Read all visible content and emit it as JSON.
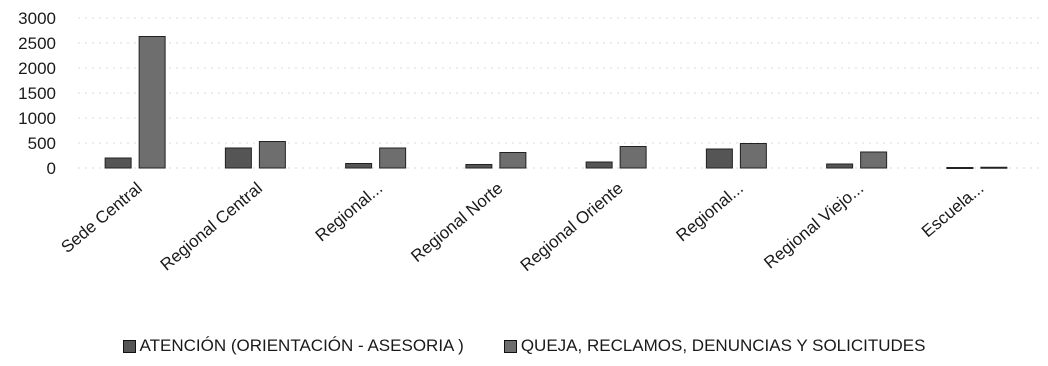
{
  "chart_data": {
    "type": "bar",
    "categories": [
      "Sede Central",
      "Regional Central",
      "Regional...",
      "Regional Norte",
      "Regional Oriente",
      "Regional...",
      "Regional Viejo...",
      "Escuela..."
    ],
    "series": [
      {
        "name": "ATENCIÓN (ORIENTACIÓN - ASESORIA )",
        "color": "#555555",
        "values": [
          200,
          400,
          90,
          70,
          120,
          380,
          80,
          10
        ]
      },
      {
        "name": "QUEJA, RECLAMOS, DENUNCIAS Y SOLICITUDES",
        "color": "#6e6e6e",
        "values": [
          2630,
          530,
          400,
          310,
          430,
          490,
          320,
          15
        ]
      }
    ],
    "yticks": [
      "3000",
      "2500",
      "2000",
      "1500",
      "1000",
      "500",
      "0"
    ],
    "ylim": [
      0,
      3000
    ],
    "legend_position": "bottom"
  }
}
